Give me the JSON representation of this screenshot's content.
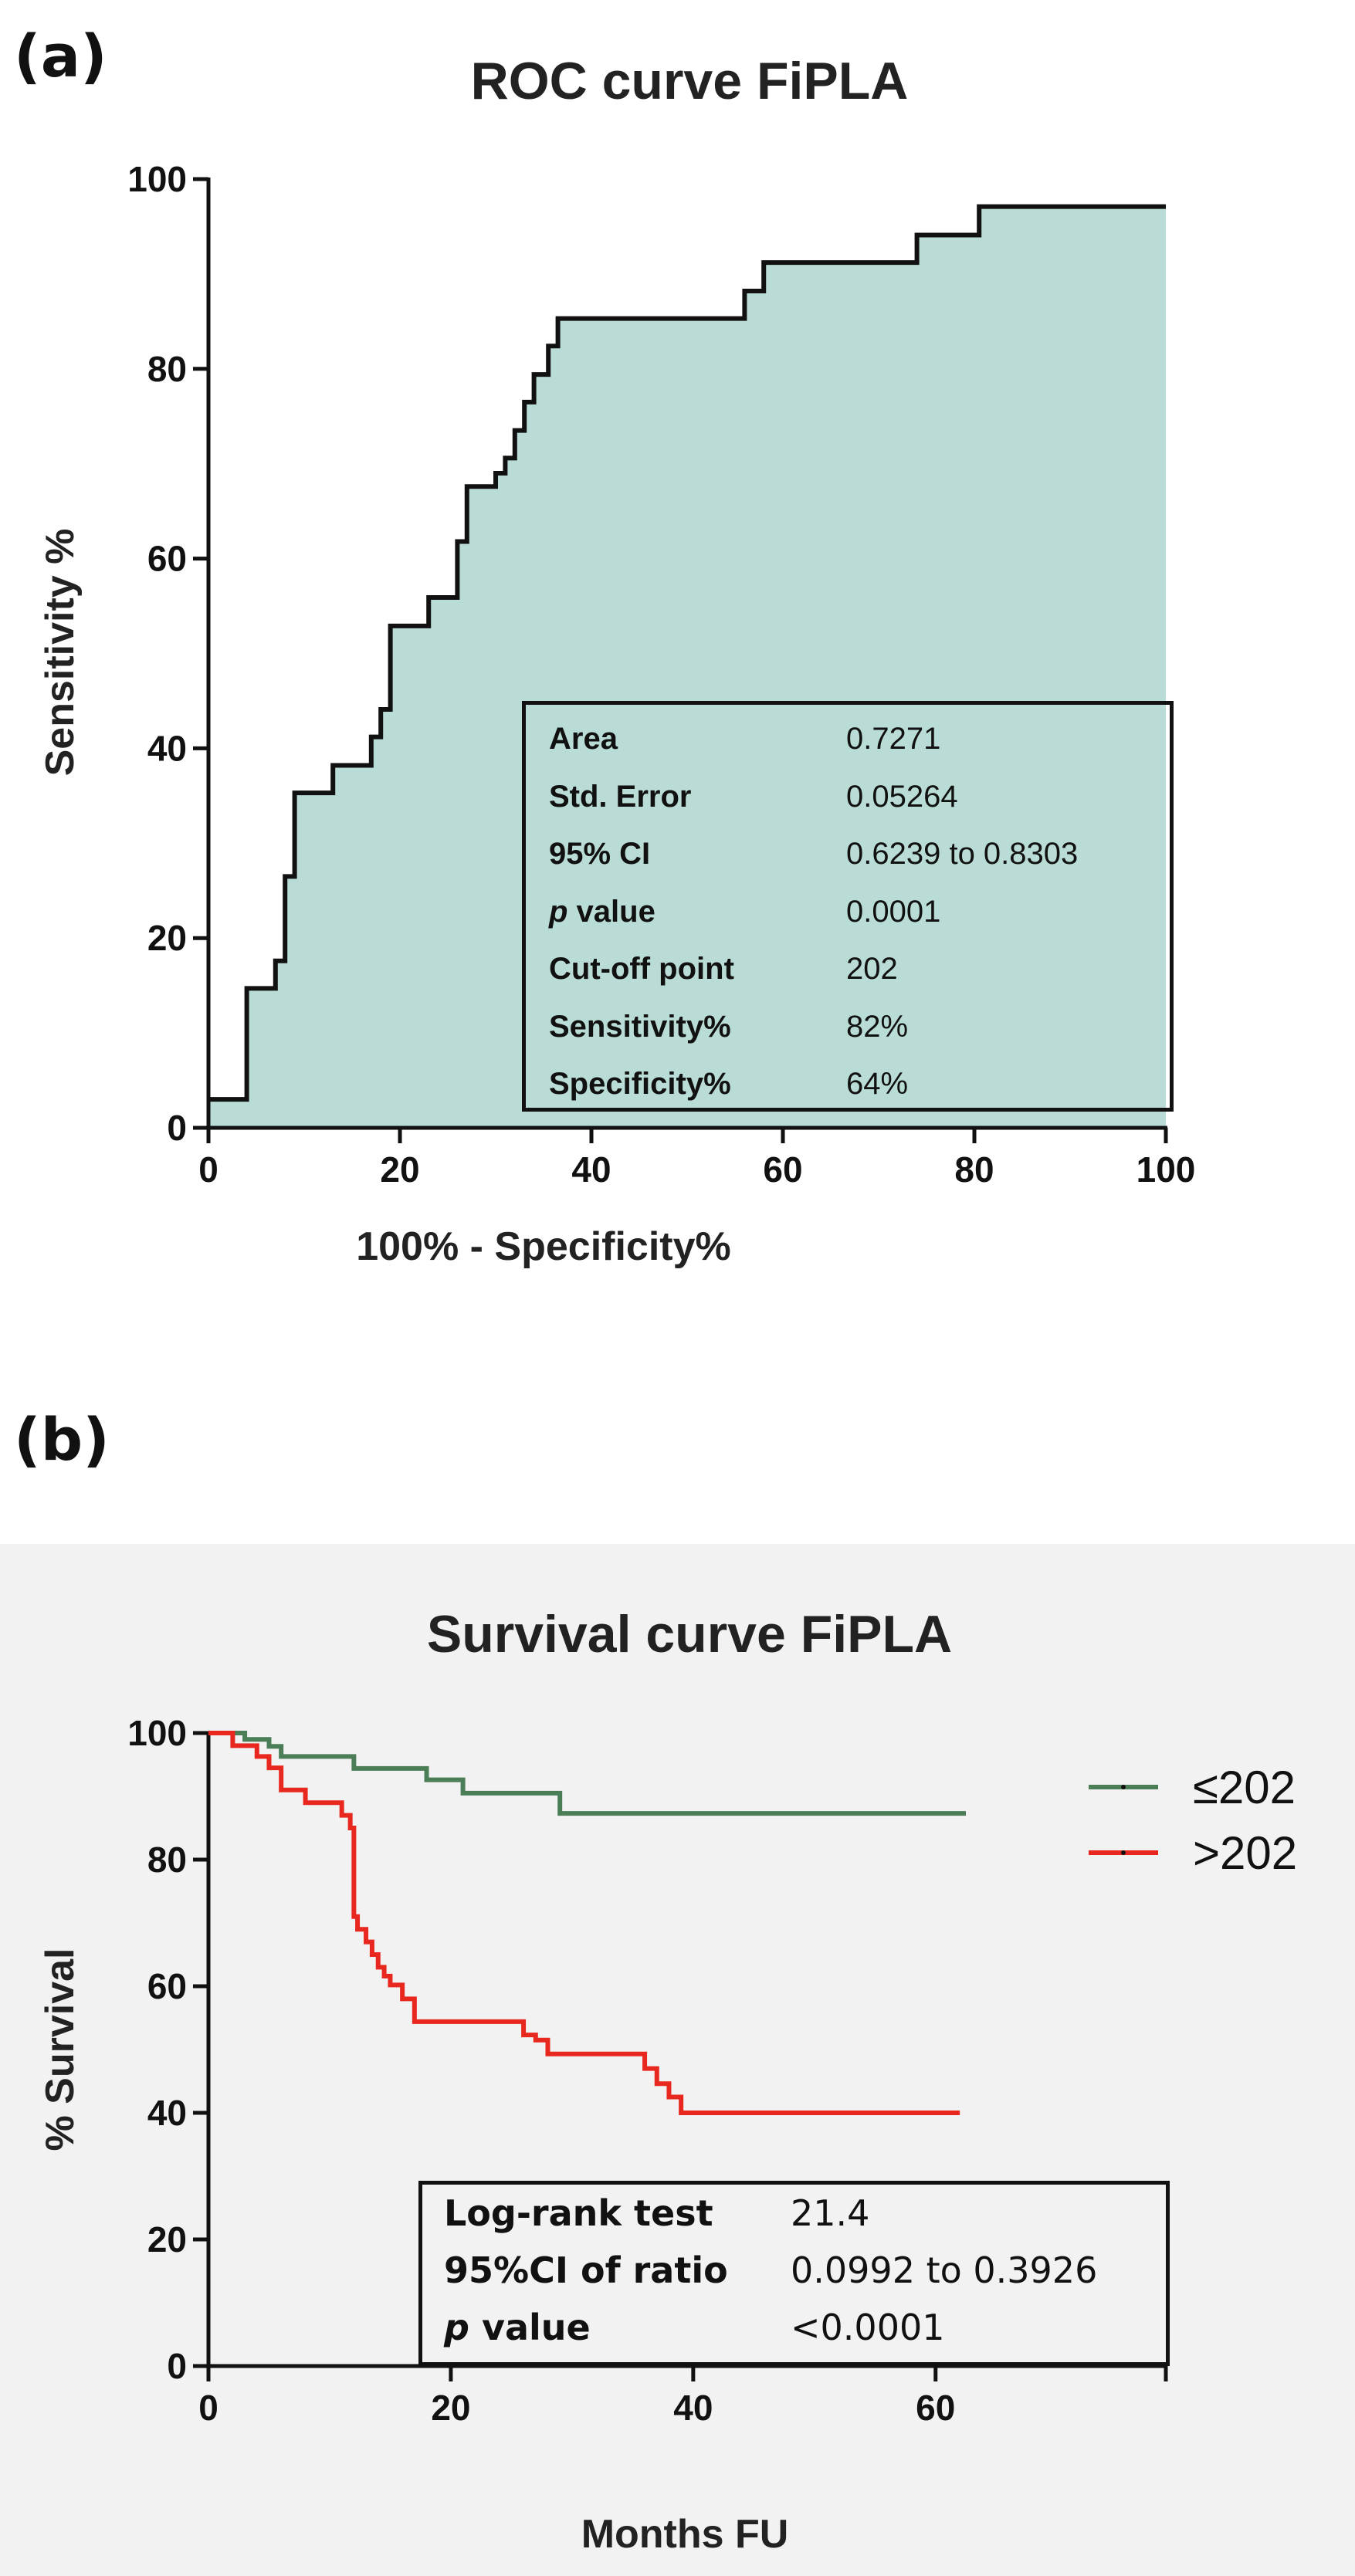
{
  "panel_a_letter": "(a)",
  "panel_b_letter": "(b)",
  "roc_stats": {
    "rows": [
      {
        "label": "Area",
        "value": "0.7271"
      },
      {
        "label": "Std. Error",
        "value": "0.05264"
      },
      {
        "label": "95% CI",
        "value": "0.6239  to 0.8303"
      },
      {
        "label_italic": "p",
        "label": " value",
        "value": "0.0001"
      },
      {
        "label": "Cut-off point",
        "value": "202"
      },
      {
        "label": "Sensitivity%",
        "value": "82%"
      },
      {
        "label": "Specificity%",
        "value": "64%"
      }
    ]
  },
  "km_stats": {
    "rows": [
      {
        "label": "Log-rank test",
        "value": "21.4"
      },
      {
        "label": "95%CI of ratio",
        "value": "0.0992 to 0.3926"
      },
      {
        "label_italic": "p",
        "label": " value",
        "value": "<0.0001"
      }
    ]
  },
  "colors": {
    "roc_fill": "#badcd6",
    "roc_line": "#111111",
    "low_group": "#4b7d57",
    "high_group": "#e8281e",
    "axis": "#111111"
  },
  "chart_data": [
    {
      "type": "area",
      "title": "ROC curve FiPLA",
      "xlabel": "100%  - Specificity%",
      "ylabel": "Sensitivity %",
      "xlim": [
        0,
        100
      ],
      "ylim": [
        0,
        100
      ],
      "x_ticks": [
        0,
        20,
        40,
        60,
        80,
        100
      ],
      "y_ticks": [
        0,
        20,
        40,
        60,
        80,
        100
      ],
      "grid": false,
      "series": [
        {
          "x": [
            0,
            4,
            4,
            7,
            7,
            8,
            8,
            9,
            9,
            13,
            13,
            17,
            17,
            18,
            18,
            19,
            19,
            23,
            23,
            26,
            26,
            27,
            27,
            30,
            30,
            31,
            31,
            32,
            32,
            33,
            33,
            34,
            34,
            35.5,
            35.5,
            36.5,
            36.5,
            56,
            56,
            58,
            58,
            74,
            74,
            80.5,
            80.5,
            82,
            82,
            100
          ],
          "y": [
            3,
            3,
            14.7,
            14.7,
            17.6,
            17.6,
            26.5,
            26.5,
            35.3,
            35.3,
            38.2,
            38.2,
            41.2,
            41.2,
            44.1,
            44.1,
            52.9,
            52.9,
            55.9,
            55.9,
            61.8,
            61.8,
            67.6,
            67.6,
            69,
            69,
            70.6,
            70.6,
            73.5,
            73.5,
            76.5,
            76.5,
            79.4,
            79.4,
            82.4,
            82.4,
            85.3,
            85.3,
            88.2,
            88.2,
            91.2,
            91.2,
            94.1,
            94.1,
            97.1,
            97.1,
            97.1,
            97.1
          ]
        }
      ]
    },
    {
      "type": "line",
      "title": "Survival curve FiPLA",
      "xlabel": "Months FU",
      "ylabel": "% Survival",
      "xlim": [
        0,
        79
      ],
      "ylim": [
        0,
        100
      ],
      "x_ticks": [
        0,
        20,
        40,
        60
      ],
      "y_ticks": [
        0,
        20,
        40,
        60,
        80,
        100
      ],
      "legend_position": "top-right",
      "series": [
        {
          "name": "≤202",
          "x": [
            0,
            3,
            3,
            5,
            5,
            6,
            6,
            8,
            8,
            12,
            12,
            18,
            18,
            21,
            21,
            29,
            29,
            62.5
          ],
          "y": [
            100,
            100,
            99,
            99,
            97.9,
            97.9,
            96.3,
            96.3,
            96.3,
            96.3,
            94.4,
            94.4,
            92.6,
            92.6,
            90.5,
            90.5,
            87.3,
            87.3
          ]
        },
        {
          "name": ">202",
          "x": [
            0,
            2,
            2,
            4,
            4,
            5,
            5,
            6,
            6,
            8,
            8,
            11,
            11,
            11.7,
            11.7,
            12,
            12,
            12.3,
            12.3,
            13,
            13,
            13.5,
            13.5,
            14,
            14,
            14.5,
            14.5,
            15,
            15,
            16,
            16,
            17,
            17,
            26,
            26,
            27,
            27,
            28,
            28,
            36,
            36,
            37,
            37,
            38,
            38,
            39,
            39,
            62
          ],
          "y": [
            100,
            100,
            98,
            98,
            96.3,
            96.3,
            94.5,
            94.5,
            91,
            91,
            89,
            89,
            87,
            87,
            85,
            85,
            71,
            71,
            69,
            69,
            67,
            67,
            65,
            65,
            63,
            63,
            61.6,
            61.6,
            60.2,
            60.2,
            58,
            58,
            54.4,
            54.4,
            52.3,
            52.3,
            51.5,
            51.5,
            49.3,
            49.3,
            47,
            47,
            44.6,
            44.6,
            42.5,
            42.5,
            40,
            40
          ]
        }
      ]
    }
  ]
}
